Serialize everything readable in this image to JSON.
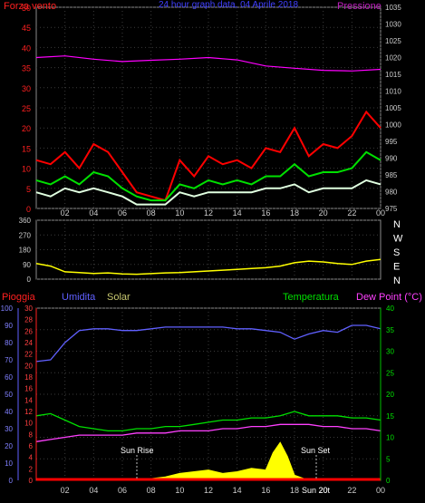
{
  "chart_data": [
    {
      "type": "line",
      "title": "24 hour graph data, 04 Aprile 2018",
      "left_axis_label": "Forza vento",
      "right_axis_label": "Pressione",
      "left_ticks": [
        "0",
        "5",
        "10",
        "15",
        "20",
        "25",
        "30",
        "35",
        "40",
        "45",
        "50"
      ],
      "right_ticks": [
        "975",
        "980",
        "985",
        "990",
        "995",
        "1000",
        "1005",
        "1010",
        "1015",
        "1020",
        "1025",
        "1030",
        "1035"
      ],
      "x_ticks": [
        "02",
        "04",
        "06",
        "08",
        "10",
        "12",
        "14",
        "16",
        "18",
        "20",
        "22",
        "00"
      ],
      "ylim_left": [
        0,
        50
      ],
      "ylim_right": [
        975,
        1035
      ],
      "series": [
        {
          "color": "#ff0000",
          "x": [
            0,
            1,
            2,
            3,
            4,
            5,
            6,
            7,
            8,
            9,
            10,
            11,
            12,
            13,
            14,
            15,
            16,
            17,
            18,
            19,
            20,
            21,
            22,
            23,
            24
          ],
          "values": [
            12,
            11,
            14,
            10,
            16,
            14,
            9,
            4,
            3,
            2,
            12,
            8,
            13,
            11,
            12,
            10,
            15,
            14,
            20,
            13,
            16,
            15,
            18,
            24,
            20
          ]
        },
        {
          "color": "#00e000",
          "x": [
            0,
            1,
            2,
            3,
            4,
            5,
            6,
            7,
            8,
            9,
            10,
            11,
            12,
            13,
            14,
            15,
            16,
            17,
            18,
            19,
            20,
            21,
            22,
            23,
            24
          ],
          "values": [
            7,
            6,
            8,
            6,
            9,
            8,
            5,
            3,
            2,
            2,
            6,
            5,
            7,
            6,
            7,
            6,
            8,
            8,
            11,
            8,
            9,
            9,
            10,
            14,
            12
          ]
        },
        {
          "color": "#e0ffe0",
          "x": [
            0,
            1,
            2,
            3,
            4,
            5,
            6,
            7,
            8,
            9,
            10,
            11,
            12,
            13,
            14,
            15,
            16,
            17,
            18,
            19,
            20,
            21,
            22,
            23,
            24
          ],
          "values": [
            4,
            3,
            5,
            4,
            5,
            4,
            3,
            1,
            1,
            1,
            4,
            3,
            4,
            4,
            4,
            4,
            5,
            5,
            6,
            4,
            5,
            5,
            5,
            7,
            6
          ]
        },
        {
          "color": "#ff00ff",
          "axis": "right",
          "x": [
            0,
            2,
            4,
            6,
            8,
            10,
            12,
            14,
            16,
            18,
            20,
            22,
            24
          ],
          "values": [
            1020,
            1020.5,
            1019.5,
            1018.8,
            1019.2,
            1019.5,
            1020,
            1019.3,
            1017.5,
            1016.8,
            1016.2,
            1016,
            1016.5
          ]
        }
      ]
    },
    {
      "type": "line",
      "left_ticks": [
        "0",
        "90",
        "180",
        "270",
        "360"
      ],
      "right_ticks": [
        "N",
        "W",
        "S",
        "E",
        "N"
      ],
      "ylim": [
        0,
        360
      ],
      "series": [
        {
          "color": "#ffff00",
          "x": [
            0,
            1,
            2,
            3,
            4,
            5,
            6,
            7,
            8,
            9,
            10,
            11,
            12,
            13,
            14,
            15,
            16,
            17,
            18,
            19,
            20,
            21,
            22,
            23,
            24
          ],
          "values": [
            95,
            80,
            45,
            40,
            35,
            38,
            32,
            30,
            34,
            38,
            40,
            45,
            50,
            55,
            60,
            65,
            70,
            80,
            100,
            110,
            105,
            95,
            90,
            110,
            120
          ]
        }
      ]
    },
    {
      "type": "line",
      "labels": {
        "rain": "Pioggia",
        "humidity": "Umidita",
        "solar": "Solar",
        "temperature": "Temperatura",
        "dewpoint": "Dew Point (°C)"
      },
      "humidity_ticks": [
        "0",
        "10",
        "20",
        "30",
        "40",
        "50",
        "60",
        "70",
        "80",
        "90",
        "100"
      ],
      "rain_ticks": [
        "0",
        "2",
        "4",
        "6",
        "8",
        "10",
        "12",
        "14",
        "16",
        "18",
        "20",
        "22",
        "24",
        "26",
        "28",
        "30"
      ],
      "temp_ticks": [
        "0",
        "5",
        "10",
        "15",
        "20",
        "25",
        "30",
        "35",
        "40"
      ],
      "x_ticks": [
        "02",
        "04",
        "06",
        "08",
        "10",
        "12",
        "14",
        "16",
        "18",
        "20",
        "22",
        "00"
      ],
      "annotations": [
        "Sun Rise",
        "Sun Set",
        "Sun 20t"
      ],
      "ylim_humidity": [
        0,
        100
      ],
      "ylim_temp": [
        0,
        40
      ],
      "series": [
        {
          "color": "#6060ff",
          "axis": "humidity",
          "x": [
            0,
            1,
            2,
            3,
            4,
            5,
            6,
            7,
            8,
            9,
            10,
            11,
            12,
            13,
            14,
            15,
            16,
            17,
            18,
            19,
            20,
            21,
            22,
            23,
            24
          ],
          "values": [
            69,
            70,
            80,
            87,
            88,
            88,
            87,
            87,
            88,
            89,
            89,
            89,
            89,
            89,
            88,
            88,
            87,
            86,
            82,
            85,
            87,
            86,
            90,
            90,
            88
          ]
        },
        {
          "color": "#00e000",
          "axis": "temp",
          "x": [
            0,
            1,
            2,
            3,
            4,
            5,
            6,
            7,
            8,
            9,
            10,
            11,
            12,
            13,
            14,
            15,
            16,
            17,
            18,
            19,
            20,
            21,
            22,
            23,
            24
          ],
          "values": [
            15,
            15.5,
            14,
            12.5,
            12,
            11.5,
            11.5,
            12,
            12,
            12.5,
            12.5,
            13,
            13.5,
            14,
            14,
            14.5,
            14.5,
            15,
            16,
            15,
            15,
            15,
            14.5,
            14.5,
            14
          ]
        },
        {
          "color": "#ff40ff",
          "axis": "temp",
          "x": [
            0,
            1,
            2,
            3,
            4,
            5,
            6,
            7,
            8,
            9,
            10,
            11,
            12,
            13,
            14,
            15,
            16,
            17,
            18,
            19,
            20,
            21,
            22,
            23,
            24
          ],
          "values": [
            9,
            9.5,
            10,
            10.5,
            10.5,
            10.5,
            10.5,
            11,
            11,
            11,
            11.5,
            11.5,
            11.5,
            12,
            12,
            12.5,
            12.5,
            13,
            13,
            13,
            12.5,
            12.5,
            12,
            12,
            11.5
          ]
        },
        {
          "color": "#ffff00",
          "axis": "humidity",
          "x": [
            0,
            6,
            7,
            8,
            9,
            10,
            11,
            12,
            13,
            14,
            15,
            16,
            16.5,
            17,
            17.5,
            18,
            19,
            24
          ],
          "values": [
            0,
            0,
            0,
            1,
            2,
            4,
            5,
            6,
            4,
            5,
            7,
            6,
            16,
            22,
            14,
            3,
            0,
            0
          ]
        },
        {
          "color": "#ff0000",
          "axis": "humidity",
          "x": [
            0,
            24
          ],
          "values": [
            0.5,
            0.5
          ]
        }
      ]
    }
  ]
}
